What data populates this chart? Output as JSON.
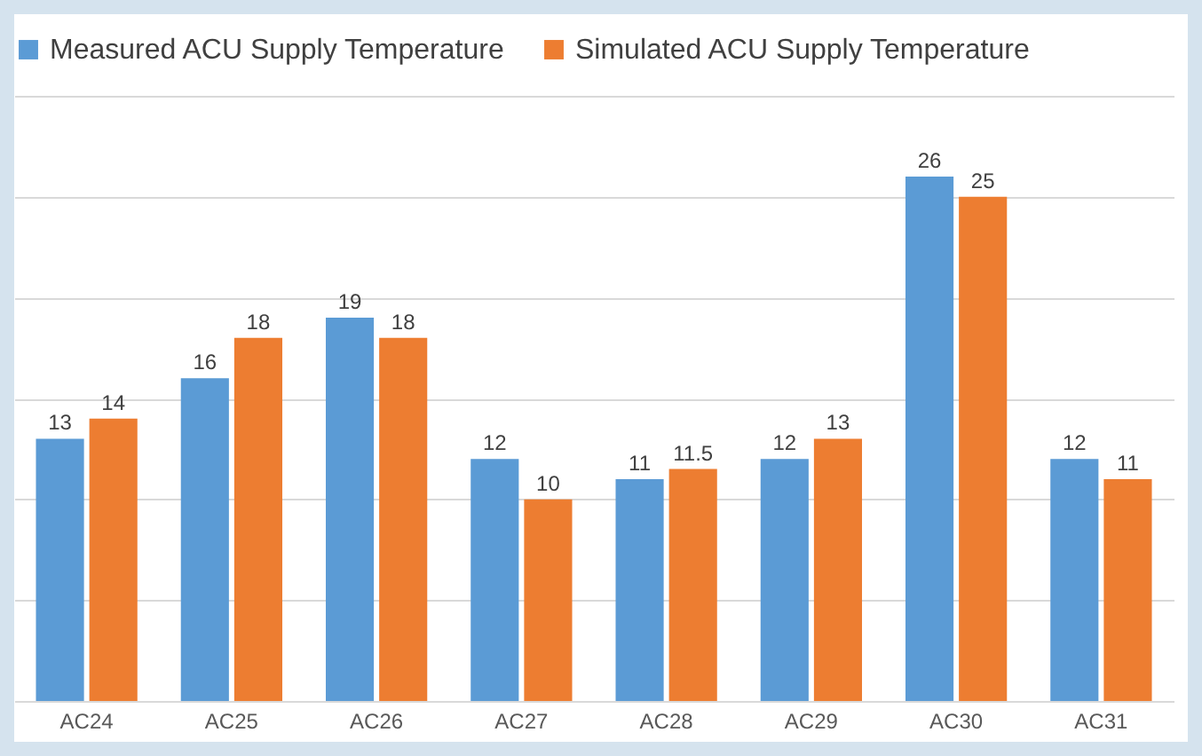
{
  "chart_data": {
    "type": "bar",
    "categories": [
      "AC24",
      "AC25",
      "AC26",
      "AC27",
      "AC28",
      "AC29",
      "AC30",
      "AC31"
    ],
    "series": [
      {
        "name": "Measured ACU Supply Temperature",
        "color": "#5b9bd5",
        "values": [
          13,
          16,
          19,
          12,
          11,
          12,
          26,
          12
        ]
      },
      {
        "name": "Simulated ACU Supply Temperature",
        "color": "#ed7d31",
        "values": [
          14,
          18,
          18,
          10,
          11.5,
          13,
          25,
          11
        ]
      }
    ],
    "ylim": [
      0,
      30
    ],
    "yticks": [
      0,
      5,
      10,
      15,
      20,
      25,
      30
    ],
    "grid": "y",
    "tick_labels": "x",
    "legend": "top",
    "data_labels": true
  }
}
